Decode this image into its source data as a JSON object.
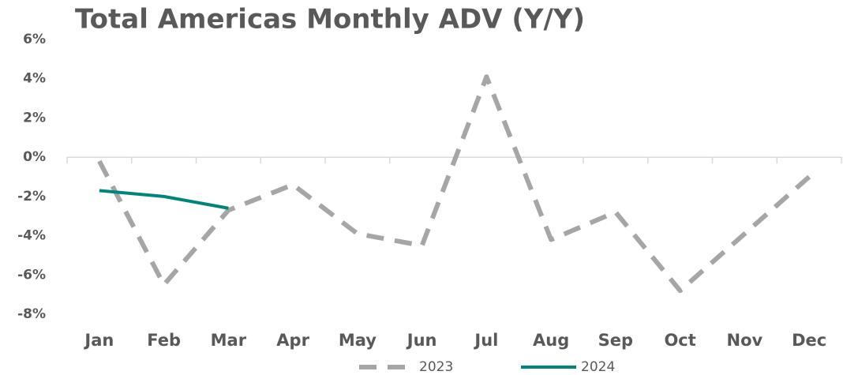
{
  "chart_data": {
    "type": "line",
    "title": "Total Americas Monthly ADV (Y/Y)",
    "categories": [
      "Jan",
      "Feb",
      "Mar",
      "Apr",
      "May",
      "Jun",
      "Jul",
      "Aug",
      "Sep",
      "Oct",
      "Nov",
      "Dec"
    ],
    "series": [
      {
        "name": "2023",
        "color": "#a6a6a6",
        "dashed": true,
        "values": [
          -0.2,
          -6.5,
          -2.7,
          -1.4,
          -3.9,
          -4.5,
          4.1,
          -4.2,
          -2.8,
          -6.8,
          -3.9,
          -1.0
        ]
      },
      {
        "name": "2024",
        "color": "#00857a",
        "dashed": false,
        "values": [
          -1.7,
          -2.0,
          -2.6,
          null,
          null,
          null,
          null,
          null,
          null,
          null,
          null,
          null
        ]
      }
    ],
    "ylim": [
      -8,
      6
    ],
    "yticks": [
      {
        "value": -8,
        "label": "-8%"
      },
      {
        "value": -6,
        "label": "-6%"
      },
      {
        "value": -4,
        "label": "-4%"
      },
      {
        "value": -2,
        "label": "-2%"
      },
      {
        "value": 0,
        "label": "0%"
      },
      {
        "value": 2,
        "label": "2%"
      },
      {
        "value": 4,
        "label": "4%"
      },
      {
        "value": 6,
        "label": "6%"
      }
    ],
    "grid": false,
    "legend": "bottom"
  }
}
